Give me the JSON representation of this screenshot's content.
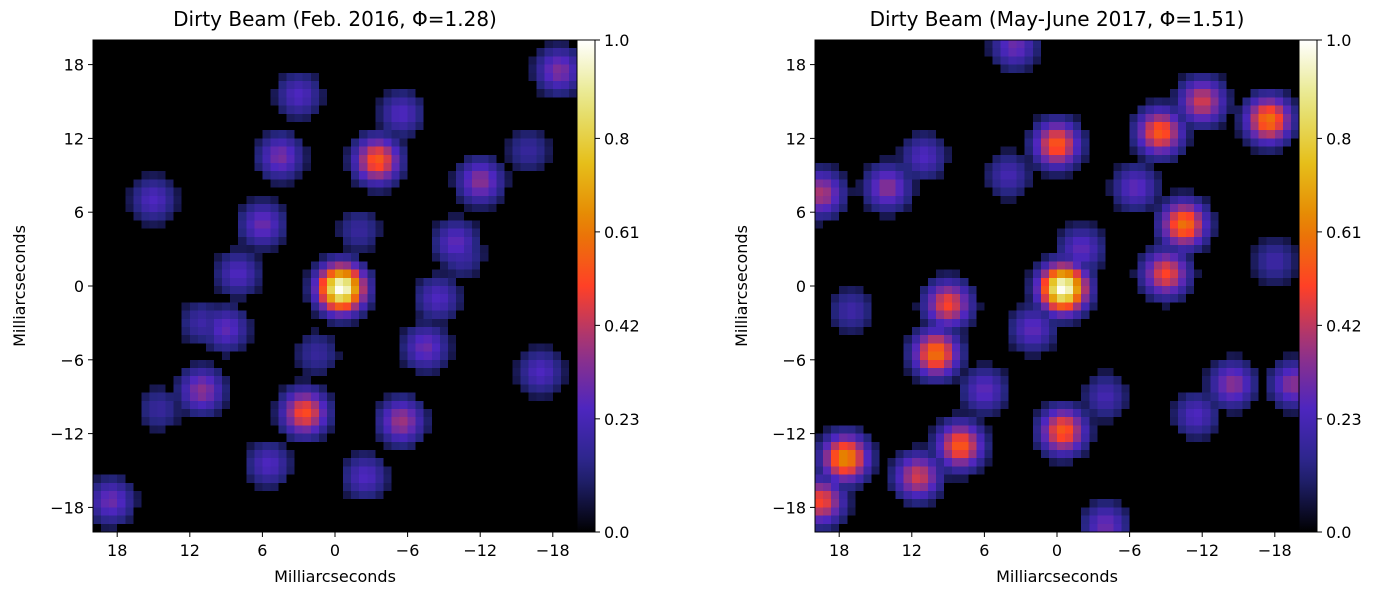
{
  "chart_data": [
    {
      "type": "heatmap",
      "title": "Dirty Beam (Feb. 2016, Φ=1.28)",
      "xlabel": "Milliarcseconds",
      "ylabel": "Milliarcseconds",
      "xlim": [
        20,
        -20
      ],
      "ylim": [
        -20,
        20
      ],
      "x_ticks": [
        "18",
        "12",
        "6",
        "0",
        "−6",
        "−12",
        "−18"
      ],
      "y_ticks": [
        "18",
        "12",
        "6",
        "0",
        "−6",
        "−12",
        "−18"
      ],
      "colorbar": {
        "range": [
          0.0,
          1.0
        ],
        "ticks": [
          "1.0",
          "0.8",
          "0.61",
          "0.42",
          "0.23",
          "0.0"
        ],
        "colormap": "CMRmap"
      },
      "peaks": [
        {
          "x": -0.5,
          "y": -0.2,
          "value": 1.0
        },
        {
          "x": -3.5,
          "y": 10.2,
          "value": 0.55
        },
        {
          "x": 2.5,
          "y": -10.3,
          "value": 0.52
        },
        {
          "x": -5.5,
          "y": -11.0,
          "value": 0.38
        },
        {
          "x": 4.5,
          "y": 10.5,
          "value": 0.32
        },
        {
          "x": -12.0,
          "y": 8.5,
          "value": 0.35
        },
        {
          "x": 11.0,
          "y": -8.5,
          "value": 0.35
        },
        {
          "x": -18.5,
          "y": 17.5,
          "value": 0.33
        },
        {
          "x": 18.5,
          "y": -17.5,
          "value": 0.3
        },
        {
          "x": 3.0,
          "y": 15.5,
          "value": 0.25
        },
        {
          "x": -2.5,
          "y": -15.5,
          "value": 0.25
        },
        {
          "x": -10.0,
          "y": 3.5,
          "value": 0.28
        },
        {
          "x": 9.0,
          "y": -3.5,
          "value": 0.28
        },
        {
          "x": -7.5,
          "y": -5.0,
          "value": 0.3
        },
        {
          "x": 6.0,
          "y": 5.0,
          "value": 0.3
        },
        {
          "x": -5.5,
          "y": 14.0,
          "value": 0.25
        },
        {
          "x": 5.5,
          "y": -14.5,
          "value": 0.25
        },
        {
          "x": 8.0,
          "y": 1.0,
          "value": 0.25
        },
        {
          "x": -8.5,
          "y": -1.0,
          "value": 0.25
        },
        {
          "x": 15.0,
          "y": 7.0,
          "value": 0.25
        },
        {
          "x": -17.0,
          "y": -7.0,
          "value": 0.25
        },
        {
          "x": 11.0,
          "y": -3.0,
          "value": 0.2
        },
        {
          "x": -10.5,
          "y": 2.5,
          "value": 0.2
        },
        {
          "x": 1.5,
          "y": -5.5,
          "value": 0.18
        },
        {
          "x": -2.0,
          "y": 4.5,
          "value": 0.18
        },
        {
          "x": 14.5,
          "y": -10.0,
          "value": 0.18
        },
        {
          "x": -16.0,
          "y": 11.0,
          "value": 0.18
        }
      ]
    },
    {
      "type": "heatmap",
      "title": "Dirty Beam (May-June 2017, Φ=1.51)",
      "xlabel": "Milliarcseconds",
      "ylabel": "Milliarcseconds",
      "xlim": [
        20,
        -20
      ],
      "ylim": [
        -20,
        20
      ],
      "x_ticks": [
        "18",
        "12",
        "6",
        "0",
        "−6",
        "−12",
        "−18"
      ],
      "y_ticks": [
        "18",
        "12",
        "6",
        "0",
        "−6",
        "−12",
        "−18"
      ],
      "colorbar": {
        "range": [
          0.0,
          1.0
        ],
        "ticks": [
          "1.0",
          "0.8",
          "0.61",
          "0.42",
          "0.23",
          "0.0"
        ],
        "colormap": "CMRmap"
      },
      "peaks": [
        {
          "x": -0.5,
          "y": -0.2,
          "value": 1.0
        },
        {
          "x": 0.0,
          "y": 11.5,
          "value": 0.55
        },
        {
          "x": -0.5,
          "y": -11.8,
          "value": 0.55
        },
        {
          "x": -10.5,
          "y": 5.0,
          "value": 0.6
        },
        {
          "x": 10.0,
          "y": -5.5,
          "value": 0.6
        },
        {
          "x": -8.5,
          "y": 12.5,
          "value": 0.55
        },
        {
          "x": 8.0,
          "y": -13.0,
          "value": 0.55
        },
        {
          "x": -9.0,
          "y": 1.0,
          "value": 0.5
        },
        {
          "x": 9.0,
          "y": -1.5,
          "value": 0.5
        },
        {
          "x": -17.5,
          "y": 13.5,
          "value": 0.6
        },
        {
          "x": 17.5,
          "y": -14.0,
          "value": 0.65
        },
        {
          "x": 19.5,
          "y": -17.5,
          "value": 0.5
        },
        {
          "x": -12.0,
          "y": 15.0,
          "value": 0.45
        },
        {
          "x": 11.5,
          "y": -15.5,
          "value": 0.45
        },
        {
          "x": 14.0,
          "y": 8.0,
          "value": 0.35
        },
        {
          "x": -14.5,
          "y": -8.0,
          "value": 0.35
        },
        {
          "x": 19.5,
          "y": 7.5,
          "value": 0.4
        },
        {
          "x": -19.5,
          "y": -8.0,
          "value": 0.35
        },
        {
          "x": -6.5,
          "y": 8.0,
          "value": 0.28
        },
        {
          "x": 6.0,
          "y": -8.5,
          "value": 0.28
        },
        {
          "x": -2.0,
          "y": 3.0,
          "value": 0.28
        },
        {
          "x": 2.0,
          "y": -3.5,
          "value": 0.28
        },
        {
          "x": 11.0,
          "y": 10.5,
          "value": 0.25
        },
        {
          "x": -11.5,
          "y": -10.5,
          "value": 0.25
        },
        {
          "x": 4.0,
          "y": 9.0,
          "value": 0.22
        },
        {
          "x": -4.0,
          "y": -9.0,
          "value": 0.22
        },
        {
          "x": -4.0,
          "y": -19.5,
          "value": 0.3
        },
        {
          "x": 3.5,
          "y": 19.5,
          "value": 0.3
        },
        {
          "x": -18.0,
          "y": 2.0,
          "value": 0.2
        },
        {
          "x": 17.0,
          "y": -2.0,
          "value": 0.2
        }
      ]
    }
  ]
}
